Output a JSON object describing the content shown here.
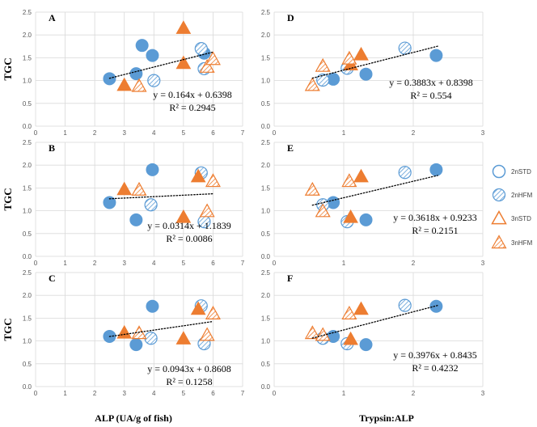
{
  "colors": {
    "blue": "#5B9BD5",
    "orange": "#ED7D31",
    "grid": "#D9D9D9",
    "trend": "#000000"
  },
  "legend": [
    {
      "key": "2nSTD",
      "label": "2nSTD",
      "marker": "circle",
      "fill": "open"
    },
    {
      "key": "2nHFM",
      "label": "2nHFM",
      "marker": "circle",
      "fill": "hatched"
    },
    {
      "key": "3nSTD",
      "label": "3nSTD",
      "marker": "triangle",
      "fill": "open"
    },
    {
      "key": "3nHFM",
      "label": "3nHFM",
      "marker": "triangle",
      "fill": "hatched"
    }
  ],
  "x_axis_titles": {
    "left": "ALP (UA/g of fish)",
    "right": "Trypsin:ALP"
  },
  "chart_data": [
    {
      "panel": "A",
      "type": "scatter",
      "ylabel": "TGC",
      "xlabel": "ALP (UA/g of fish)",
      "xlim": [
        0,
        7
      ],
      "ylim": [
        0,
        2.5
      ],
      "xticks": [
        "0",
        "1",
        "2",
        "3",
        "4",
        "5",
        "6",
        "7"
      ],
      "yticks": [
        "0.0",
        "0.5",
        "1.0",
        "1.5",
        "2.0",
        "2.5"
      ],
      "equation": "y = 0.164x + 0.6398",
      "r2": "R² = 0.2945",
      "trend": {
        "slope": 0.164,
        "intercept": 0.6398,
        "xrange": [
          2.5,
          6.0
        ]
      },
      "series": [
        {
          "name": "2nSTD-filled",
          "marker": "circle",
          "fill": "solid",
          "points": [
            [
              2.5,
              1.04
            ],
            [
              3.4,
              1.15
            ],
            [
              3.6,
              1.77
            ],
            [
              3.95,
              1.55
            ],
            [
              5.7,
              1.6
            ]
          ]
        },
        {
          "name": "2nHFM",
          "marker": "circle",
          "fill": "hatched",
          "points": [
            [
              4.0,
              1.0
            ],
            [
              5.6,
              1.7
            ],
            [
              5.7,
              1.26
            ]
          ]
        },
        {
          "name": "3nSTD-filled",
          "marker": "triangle",
          "fill": "solid",
          "points": [
            [
              3.0,
              0.9
            ],
            [
              5.0,
              1.38
            ],
            [
              5.0,
              2.15
            ]
          ]
        },
        {
          "name": "3nHFM",
          "marker": "triangle",
          "fill": "hatched",
          "points": [
            [
              3.5,
              0.88
            ],
            [
              5.8,
              1.3
            ],
            [
              6.0,
              1.47
            ]
          ]
        }
      ]
    },
    {
      "panel": "B",
      "type": "scatter",
      "ylabel": "TGC",
      "xlabel": "ALP (UA/g of fish)",
      "xlim": [
        0,
        7
      ],
      "ylim": [
        0,
        2.5
      ],
      "xticks": [
        "0",
        "1",
        "2",
        "3",
        "4",
        "5",
        "6",
        "7"
      ],
      "yticks": [
        "0.0",
        "0.5",
        "1.0",
        "1.5",
        "2.0",
        "2.5"
      ],
      "equation": "y = 0.0314x + 1.1839",
      "r2": "R² = 0.0086",
      "trend": {
        "slope": 0.0314,
        "intercept": 1.1839,
        "xrange": [
          2.5,
          6.0
        ]
      },
      "series": [
        {
          "name": "2nSTD-filled",
          "marker": "circle",
          "fill": "solid",
          "points": [
            [
              2.5,
              1.18
            ],
            [
              3.4,
              0.8
            ],
            [
              3.95,
              1.9
            ]
          ]
        },
        {
          "name": "2nHFM",
          "marker": "circle",
          "fill": "hatched",
          "points": [
            [
              3.9,
              1.13
            ],
            [
              5.6,
              1.83
            ],
            [
              5.7,
              0.76
            ]
          ]
        },
        {
          "name": "3nSTD-filled",
          "marker": "triangle",
          "fill": "solid",
          "points": [
            [
              3.0,
              1.47
            ],
            [
              5.0,
              0.86
            ],
            [
              5.5,
              1.75
            ]
          ]
        },
        {
          "name": "3nHFM",
          "marker": "triangle",
          "fill": "hatched",
          "points": [
            [
              3.5,
              1.46
            ],
            [
              5.8,
              0.99
            ],
            [
              6.0,
              1.65
            ]
          ]
        }
      ]
    },
    {
      "panel": "C",
      "type": "scatter",
      "ylabel": "TGC",
      "xlabel": "ALP (UA/g of fish)",
      "xlim": [
        0,
        7
      ],
      "ylim": [
        0,
        2.5
      ],
      "xticks": [
        "0",
        "1",
        "2",
        "3",
        "4",
        "5",
        "6",
        "7"
      ],
      "yticks": [
        "0.0",
        "0.5",
        "1.0",
        "1.5",
        "2.0",
        "2.5"
      ],
      "equation": "y = 0.0943x + 0.8608",
      "r2": "R² = 0.1258",
      "trend": {
        "slope": 0.0943,
        "intercept": 0.8608,
        "xrange": [
          2.5,
          6.0
        ]
      },
      "series": [
        {
          "name": "2nSTD-filled",
          "marker": "circle",
          "fill": "solid",
          "points": [
            [
              2.5,
              1.1
            ],
            [
              3.4,
              0.92
            ],
            [
              3.95,
              1.76
            ]
          ]
        },
        {
          "name": "2nHFM",
          "marker": "circle",
          "fill": "hatched",
          "points": [
            [
              3.9,
              1.06
            ],
            [
              5.6,
              1.77
            ],
            [
              5.7,
              0.94
            ]
          ]
        },
        {
          "name": "3nSTD-filled",
          "marker": "triangle",
          "fill": "solid",
          "points": [
            [
              3.0,
              1.18
            ],
            [
              5.0,
              1.05
            ],
            [
              5.5,
              1.7
            ]
          ]
        },
        {
          "name": "3nHFM",
          "marker": "triangle",
          "fill": "hatched",
          "points": [
            [
              3.5,
              1.17
            ],
            [
              5.8,
              1.13
            ],
            [
              6.0,
              1.6
            ]
          ]
        }
      ]
    },
    {
      "panel": "D",
      "type": "scatter",
      "ylabel": "",
      "xlabel": "Trypsin:ALP",
      "xlim": [
        0,
        3
      ],
      "ylim": [
        0,
        2.5
      ],
      "xticks": [
        "0",
        "1",
        "2",
        "3"
      ],
      "yticks": [
        "0.0",
        "0.5",
        "1.0",
        "1.5",
        "2.0",
        "2.5"
      ],
      "equation": "y = 0.3883x + 0.8398",
      "r2": "R² = 0.554",
      "trend": {
        "slope": 0.3883,
        "intercept": 0.8398,
        "xrange": [
          0.55,
          2.35
        ]
      },
      "series": [
        {
          "name": "2nSTD-filled",
          "marker": "circle",
          "fill": "solid",
          "points": [
            [
              0.85,
              1.03
            ],
            [
              1.32,
              1.14
            ],
            [
              2.33,
              1.55
            ]
          ]
        },
        {
          "name": "2nHFM",
          "marker": "circle",
          "fill": "hatched",
          "points": [
            [
              0.7,
              1.01
            ],
            [
              1.05,
              1.27
            ],
            [
              1.88,
              1.71
            ]
          ]
        },
        {
          "name": "3nSTD-filled",
          "marker": "triangle",
          "fill": "solid",
          "points": [
            [
              1.1,
              1.35
            ],
            [
              1.25,
              1.57
            ]
          ]
        },
        {
          "name": "3nHFM",
          "marker": "triangle",
          "fill": "hatched",
          "points": [
            [
              0.55,
              0.9
            ],
            [
              0.7,
              1.32
            ],
            [
              1.08,
              1.48
            ]
          ]
        }
      ]
    },
    {
      "panel": "E",
      "type": "scatter",
      "ylabel": "",
      "xlabel": "Trypsin:ALP",
      "xlim": [
        0,
        3
      ],
      "ylim": [
        0,
        2.5
      ],
      "xticks": [
        "0",
        "1",
        "2",
        "3"
      ],
      "yticks": [
        "0.0",
        "0.5",
        "1.0",
        "1.5",
        "2.0",
        "2.5"
      ],
      "equation": "y = 0.3618x + 0.9233",
      "r2": "R² = 0.2151",
      "trend": {
        "slope": 0.3618,
        "intercept": 0.9233,
        "xrange": [
          0.55,
          2.35
        ]
      },
      "series": [
        {
          "name": "2nSTD-filled",
          "marker": "circle",
          "fill": "solid",
          "points": [
            [
              0.85,
              1.18
            ],
            [
              1.32,
              0.8
            ],
            [
              2.33,
              1.9
            ]
          ]
        },
        {
          "name": "2nHFM",
          "marker": "circle",
          "fill": "hatched",
          "points": [
            [
              0.7,
              1.13
            ],
            [
              1.05,
              0.76
            ],
            [
              1.88,
              1.84
            ]
          ]
        },
        {
          "name": "3nSTD-filled",
          "marker": "triangle",
          "fill": "solid",
          "points": [
            [
              1.1,
              0.86
            ],
            [
              1.25,
              1.75
            ]
          ]
        },
        {
          "name": "3nHFM",
          "marker": "triangle",
          "fill": "hatched",
          "points": [
            [
              0.55,
              1.46
            ],
            [
              0.7,
              0.99
            ],
            [
              1.08,
              1.65
            ]
          ]
        }
      ]
    },
    {
      "panel": "F",
      "type": "scatter",
      "ylabel": "",
      "xlabel": "Trypsin:ALP",
      "xlim": [
        0,
        3
      ],
      "ylim": [
        0,
        2.5
      ],
      "xticks": [
        "0",
        "1",
        "2",
        "3"
      ],
      "yticks": [
        "0.0",
        "0.5",
        "1.0",
        "1.5",
        "2.0",
        "2.5"
      ],
      "equation": "y = 0.3976x + 0.8435",
      "r2": "R² = 0.4232",
      "trend": {
        "slope": 0.3976,
        "intercept": 0.8435,
        "xrange": [
          0.55,
          2.35
        ]
      },
      "series": [
        {
          "name": "2nSTD-filled",
          "marker": "circle",
          "fill": "solid",
          "points": [
            [
              0.85,
              1.1
            ],
            [
              1.32,
              0.92
            ],
            [
              2.33,
              1.76
            ]
          ]
        },
        {
          "name": "2nHFM",
          "marker": "circle",
          "fill": "hatched",
          "points": [
            [
              0.7,
              1.06
            ],
            [
              1.05,
              0.94
            ],
            [
              1.88,
              1.78
            ]
          ]
        },
        {
          "name": "3nSTD-filled",
          "marker": "triangle",
          "fill": "solid",
          "points": [
            [
              1.1,
              1.04
            ],
            [
              1.25,
              1.7
            ]
          ]
        },
        {
          "name": "3nHFM",
          "marker": "triangle",
          "fill": "hatched",
          "points": [
            [
              0.55,
              1.17
            ],
            [
              0.7,
              1.13
            ],
            [
              1.08,
              1.6
            ]
          ]
        }
      ]
    }
  ]
}
